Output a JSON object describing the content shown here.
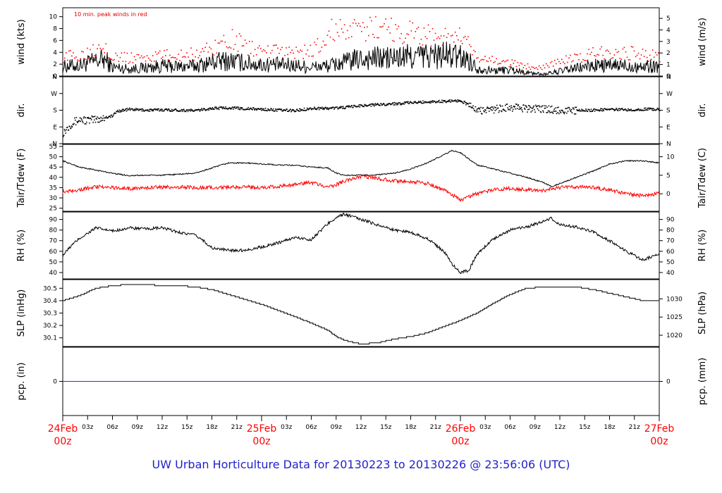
{
  "page": {
    "title": "UW Urban Horticulture Data for 20130223  to  20130226 @ 23:56:06  (UTC)",
    "title_color": "#2222cc"
  },
  "colors": {
    "primary": "#000000",
    "secondary": "#ff0000",
    "precip": "#3333cc",
    "date_labels": "#ff0000"
  },
  "x_axis": {
    "range_hours": [
      0,
      72
    ],
    "date_ticks": [
      {
        "hour": 0,
        "date": "24Feb",
        "time": "00z"
      },
      {
        "hour": 24,
        "date": "25Feb",
        "time": "00z"
      },
      {
        "hour": 48,
        "date": "26Feb",
        "time": "00z"
      },
      {
        "hour": 72,
        "date": "27Feb",
        "time": "00z"
      }
    ],
    "hour_ticks": [
      {
        "hour": 3,
        "label": "03z"
      },
      {
        "hour": 6,
        "label": "06z"
      },
      {
        "hour": 9,
        "label": "09z"
      },
      {
        "hour": 12,
        "label": "12z"
      },
      {
        "hour": 15,
        "label": "15z"
      },
      {
        "hour": 18,
        "label": "18z"
      },
      {
        "hour": 21,
        "label": "21z"
      },
      {
        "hour": 27,
        "label": "03z"
      },
      {
        "hour": 30,
        "label": "06z"
      },
      {
        "hour": 33,
        "label": "09z"
      },
      {
        "hour": 36,
        "label": "12z"
      },
      {
        "hour": 39,
        "label": "15z"
      },
      {
        "hour": 42,
        "label": "18z"
      },
      {
        "hour": 45,
        "label": "21z"
      },
      {
        "hour": 51,
        "label": "03z"
      },
      {
        "hour": 54,
        "label": "06z"
      },
      {
        "hour": 57,
        "label": "09z"
      },
      {
        "hour": 60,
        "label": "12z"
      },
      {
        "hour": 63,
        "label": "15z"
      },
      {
        "hour": 66,
        "label": "18z"
      },
      {
        "hour": 69,
        "label": "21z"
      }
    ]
  },
  "chart_data": [
    {
      "id": "wind",
      "type": "line",
      "ylabel": "wind (kts)",
      "ylabel_right": "wind (m/s)",
      "ylim": [
        0,
        11.5
      ],
      "yticks": [
        0,
        2,
        4,
        6,
        8,
        10
      ],
      "ylim_right": [
        0,
        5.92
      ],
      "yticks_right": [
        0,
        1,
        2,
        3,
        4,
        5
      ],
      "annotation": "10 min. peak winds in red",
      "series": [
        {
          "role": "mean",
          "color": "#000000",
          "x": [
            0,
            2,
            4,
            5,
            6,
            8,
            10,
            12,
            14,
            16,
            18,
            20,
            22,
            24,
            26,
            28,
            30,
            32,
            34,
            36,
            38,
            40,
            42,
            44,
            46,
            48,
            49,
            50,
            52,
            54,
            56,
            58,
            60,
            62,
            64,
            66,
            68,
            70,
            72
          ],
          "y": [
            1.6,
            1.8,
            2.5,
            2.8,
            1.5,
            1.2,
            1.4,
            1.7,
            1.6,
            1.7,
            2.3,
            2.6,
            2.2,
            1.9,
            1.9,
            1.8,
            1.5,
            1.7,
            2.3,
            2.9,
            3.0,
            3.0,
            3.3,
            3.4,
            3.5,
            3.2,
            2.7,
            1.3,
            0.9,
            1.1,
            0.6,
            0.3,
            0.8,
            1.3,
            1.8,
            1.7,
            1.8,
            1.6,
            1.7
          ]
        },
        {
          "role": "peak",
          "color": "#ff0000",
          "x": [
            0,
            2,
            4,
            5,
            6,
            8,
            10,
            12,
            14,
            16,
            18,
            20,
            22,
            24,
            26,
            28,
            30,
            32,
            33,
            34,
            36,
            38,
            40,
            42,
            44,
            46,
            48,
            49,
            50,
            52,
            54,
            56,
            58,
            60,
            62,
            64,
            66,
            68,
            70,
            72
          ],
          "y": [
            3.2,
            3.5,
            4.8,
            5.6,
            3.2,
            3.0,
            3.2,
            3.4,
            3.5,
            3.7,
            4.8,
            6.3,
            5.0,
            4.2,
            4.0,
            3.9,
            4.2,
            6.3,
            9.0,
            7.4,
            7.3,
            8.5,
            7.8,
            7.3,
            6.9,
            6.6,
            6.4,
            5.0,
            2.7,
            2.6,
            2.2,
            1.6,
            1.6,
            2.6,
            2.9,
            3.8,
            4.1,
            3.9,
            3.6,
            3.4
          ]
        }
      ]
    },
    {
      "id": "dir",
      "type": "scatter",
      "ylabel": "dir.",
      "ylabel_right": "dir.",
      "ylim": [
        0,
        360
      ],
      "yticks": [
        0,
        90,
        180,
        270,
        360
      ],
      "ytick_labels": [
        "N",
        "E",
        "S",
        "W",
        "N"
      ],
      "series": [
        {
          "role": "direction",
          "color": "#000000",
          "x": [
            0,
            1,
            2,
            3,
            4,
            6,
            6.5,
            8,
            10,
            12,
            14,
            16,
            18,
            20,
            22,
            24,
            26,
            28,
            30,
            32,
            34,
            36,
            38,
            40,
            42,
            44,
            46,
            48,
            50,
            52,
            54,
            56,
            58,
            60,
            62,
            64,
            66,
            68,
            70,
            72
          ],
          "y": [
            60,
            110,
            130,
            125,
            130,
            150,
            175,
            185,
            180,
            182,
            180,
            178,
            190,
            193,
            188,
            185,
            180,
            178,
            190,
            190,
            195,
            205,
            210,
            215,
            220,
            225,
            228,
            232,
            178,
            185,
            195,
            190,
            185,
            180,
            178,
            180,
            185,
            182,
            185,
            185
          ]
        }
      ]
    },
    {
      "id": "temp",
      "type": "line",
      "ylabel": "Tair/Tdew (F)",
      "ylabel_right": "Tair/Tdew (C)",
      "ylim": [
        23.5,
        56
      ],
      "yticks": [
        25,
        30,
        35,
        40,
        45,
        50,
        55
      ],
      "ylim_right": [
        -4.72,
        13.33
      ],
      "yticks_right": [
        0,
        5,
        10
      ],
      "series": [
        {
          "role": "air-temperature",
          "color": "#000000",
          "x": [
            0,
            2,
            4,
            6,
            8,
            10,
            12,
            14,
            16,
            18,
            20,
            22,
            24,
            26,
            28,
            30,
            32,
            33,
            34,
            36,
            38,
            40,
            42,
            44,
            46,
            47,
            48,
            49,
            50,
            52,
            54,
            56,
            58,
            59,
            60,
            62,
            64,
            66,
            68,
            70,
            72
          ],
          "y": [
            48,
            45,
            43.5,
            42,
            40.8,
            41,
            41,
            41.5,
            42,
            44.5,
            47,
            47,
            46.5,
            46,
            45.8,
            45,
            44.6,
            42,
            41,
            41,
            41.2,
            42,
            44,
            47,
            51,
            53,
            52,
            49,
            46,
            44,
            42,
            40,
            37.5,
            35.5,
            37,
            40,
            43,
            46.5,
            48,
            48,
            47
          ]
        },
        {
          "role": "dew-point",
          "color": "#ff0000",
          "x": [
            0,
            2,
            4,
            6,
            8,
            10,
            12,
            14,
            16,
            18,
            20,
            22,
            24,
            26,
            28,
            30,
            32,
            34,
            36,
            38,
            40,
            42,
            44,
            46,
            48,
            50,
            52,
            54,
            56,
            58,
            60,
            62,
            64,
            66,
            68,
            70,
            72
          ],
          "y": [
            33,
            34,
            35.5,
            35,
            34.5,
            35,
            35.2,
            35.3,
            35,
            35,
            35.2,
            35.3,
            35,
            35.6,
            36.5,
            37.5,
            35,
            38,
            40.5,
            39.5,
            38.2,
            38,
            37,
            34,
            29,
            32,
            34,
            34.5,
            34,
            33.6,
            35,
            35.5,
            35,
            34,
            32,
            31,
            32.3
          ]
        }
      ]
    },
    {
      "id": "rh",
      "type": "line",
      "ylabel": "RH (%)",
      "ylabel_right": "RH (%)",
      "ylim": [
        34,
        97
      ],
      "yticks": [
        40,
        50,
        60,
        70,
        80,
        90
      ],
      "yticks_right": [
        40,
        50,
        60,
        70,
        80,
        90
      ],
      "series": [
        {
          "role": "relative-humidity",
          "color": "#000000",
          "x": [
            0,
            1,
            2,
            4,
            6,
            8,
            10,
            12,
            14,
            16,
            17,
            18,
            20,
            22,
            24,
            26,
            28,
            30,
            32,
            33,
            34,
            36,
            38,
            40,
            42,
            44,
            46,
            47,
            48,
            49,
            50,
            52,
            54,
            56,
            58,
            59,
            60,
            62,
            64,
            66,
            68,
            70,
            72
          ],
          "y": [
            56,
            65,
            72,
            82,
            79,
            82,
            81,
            82,
            78,
            75,
            70,
            63,
            61,
            61,
            64,
            68,
            73,
            71,
            86,
            92,
            95,
            90,
            85,
            80,
            78,
            72,
            60,
            48,
            40,
            42,
            57,
            72,
            80,
            83,
            88,
            91,
            85,
            83,
            78,
            70,
            60,
            52,
            57
          ]
        }
      ]
    },
    {
      "id": "slp",
      "type": "line",
      "ylabel": "SLP (inHg)",
      "ylabel_right": "SLP (hPa)",
      "ylim": [
        30.03,
        30.57
      ],
      "yticks": [
        30.1,
        30.2,
        30.3,
        30.4,
        30.5
      ],
      "ylim_right": [
        1016.9,
        1035.3
      ],
      "yticks_right": [
        1020,
        1025,
        1030
      ],
      "series": [
        {
          "role": "sea-level-pressure",
          "color": "#000000",
          "x": [
            0,
            1,
            2,
            3,
            4,
            6,
            8,
            10,
            12,
            14,
            16,
            18,
            20,
            22,
            24,
            26,
            28,
            30,
            32,
            33,
            34,
            36,
            38,
            40,
            42,
            44,
            46,
            48,
            50,
            52,
            54,
            56,
            58,
            60,
            62,
            64,
            66,
            68,
            70,
            72
          ],
          "y": [
            30.4,
            30.42,
            30.44,
            30.47,
            30.5,
            30.52,
            30.53,
            30.53,
            30.52,
            30.52,
            30.51,
            30.49,
            30.45,
            30.41,
            30.37,
            30.32,
            30.27,
            30.22,
            30.16,
            30.11,
            30.08,
            30.05,
            30.06,
            30.09,
            30.11,
            30.14,
            30.19,
            30.24,
            30.3,
            30.38,
            30.45,
            30.5,
            30.51,
            30.51,
            30.51,
            30.49,
            30.46,
            30.43,
            30.4,
            30.4
          ]
        }
      ]
    },
    {
      "id": "pcp",
      "type": "line",
      "ylabel": "pcp. (in)",
      "ylabel_right": "pcp. (mm)",
      "ylim": [
        -1,
        1
      ],
      "yticks": [
        0
      ],
      "yticks_right": [
        0
      ],
      "series": [
        {
          "role": "precipitation",
          "color": "#3333cc",
          "x": [
            0,
            72
          ],
          "y": [
            0,
            0
          ]
        }
      ]
    }
  ]
}
